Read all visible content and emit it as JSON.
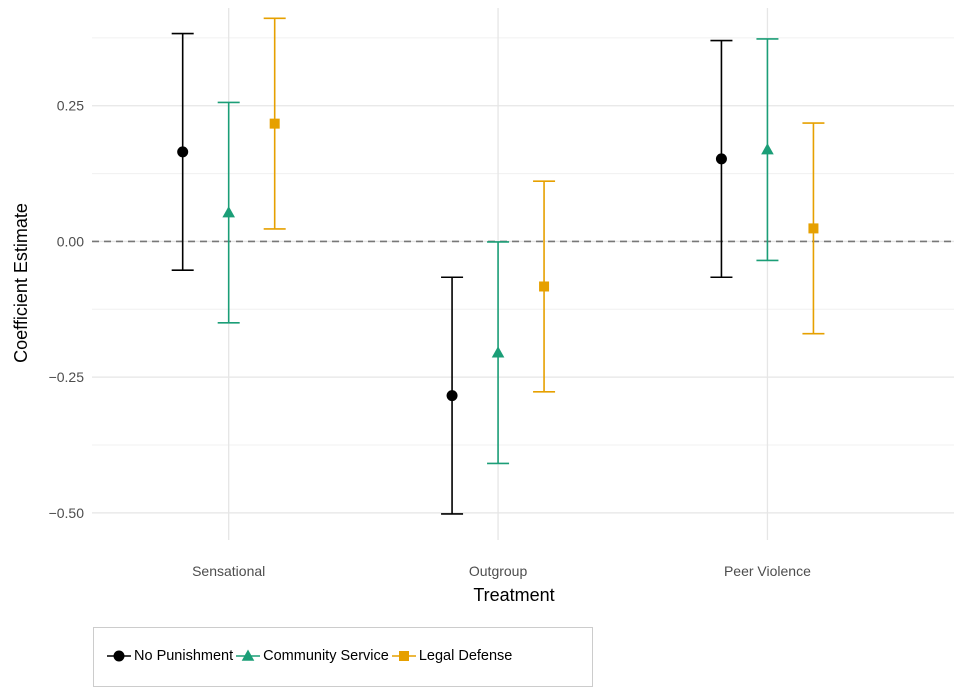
{
  "chart_data": {
    "type": "errorbar",
    "xlabel": "Treatment",
    "ylabel": "Coefficient Estimate",
    "categories": [
      "Sensational",
      "Outgroup",
      "Peer Violence"
    ],
    "ylim": [
      -0.55,
      0.43
    ],
    "yticks": [
      0.25,
      0.0,
      -0.25,
      -0.5
    ],
    "ytick_labels": [
      "0.25",
      "0.00",
      "−0.25",
      "−0.50"
    ],
    "reference_line": 0,
    "grid": true,
    "legend_position": "bottom",
    "series": [
      {
        "name": "No Punishment",
        "color": "#000000",
        "marker": "circle",
        "estimate": [
          0.165,
          -0.284,
          0.152
        ],
        "lower": [
          -0.053,
          -0.502,
          -0.066
        ],
        "upper": [
          0.383,
          -0.066,
          0.37
        ]
      },
      {
        "name": "Community Service",
        "color": "#1b9e77",
        "marker": "triangle",
        "estimate": [
          0.053,
          -0.205,
          0.169
        ],
        "lower": [
          -0.15,
          -0.409,
          -0.035
        ],
        "upper": [
          0.256,
          -0.001,
          0.373
        ]
      },
      {
        "name": "Legal Defense",
        "color": "#e6a000",
        "marker": "square",
        "estimate": [
          0.217,
          -0.083,
          0.024
        ],
        "lower": [
          0.023,
          -0.277,
          -0.17
        ],
        "upper": [
          0.411,
          0.111,
          0.218
        ]
      }
    ]
  }
}
